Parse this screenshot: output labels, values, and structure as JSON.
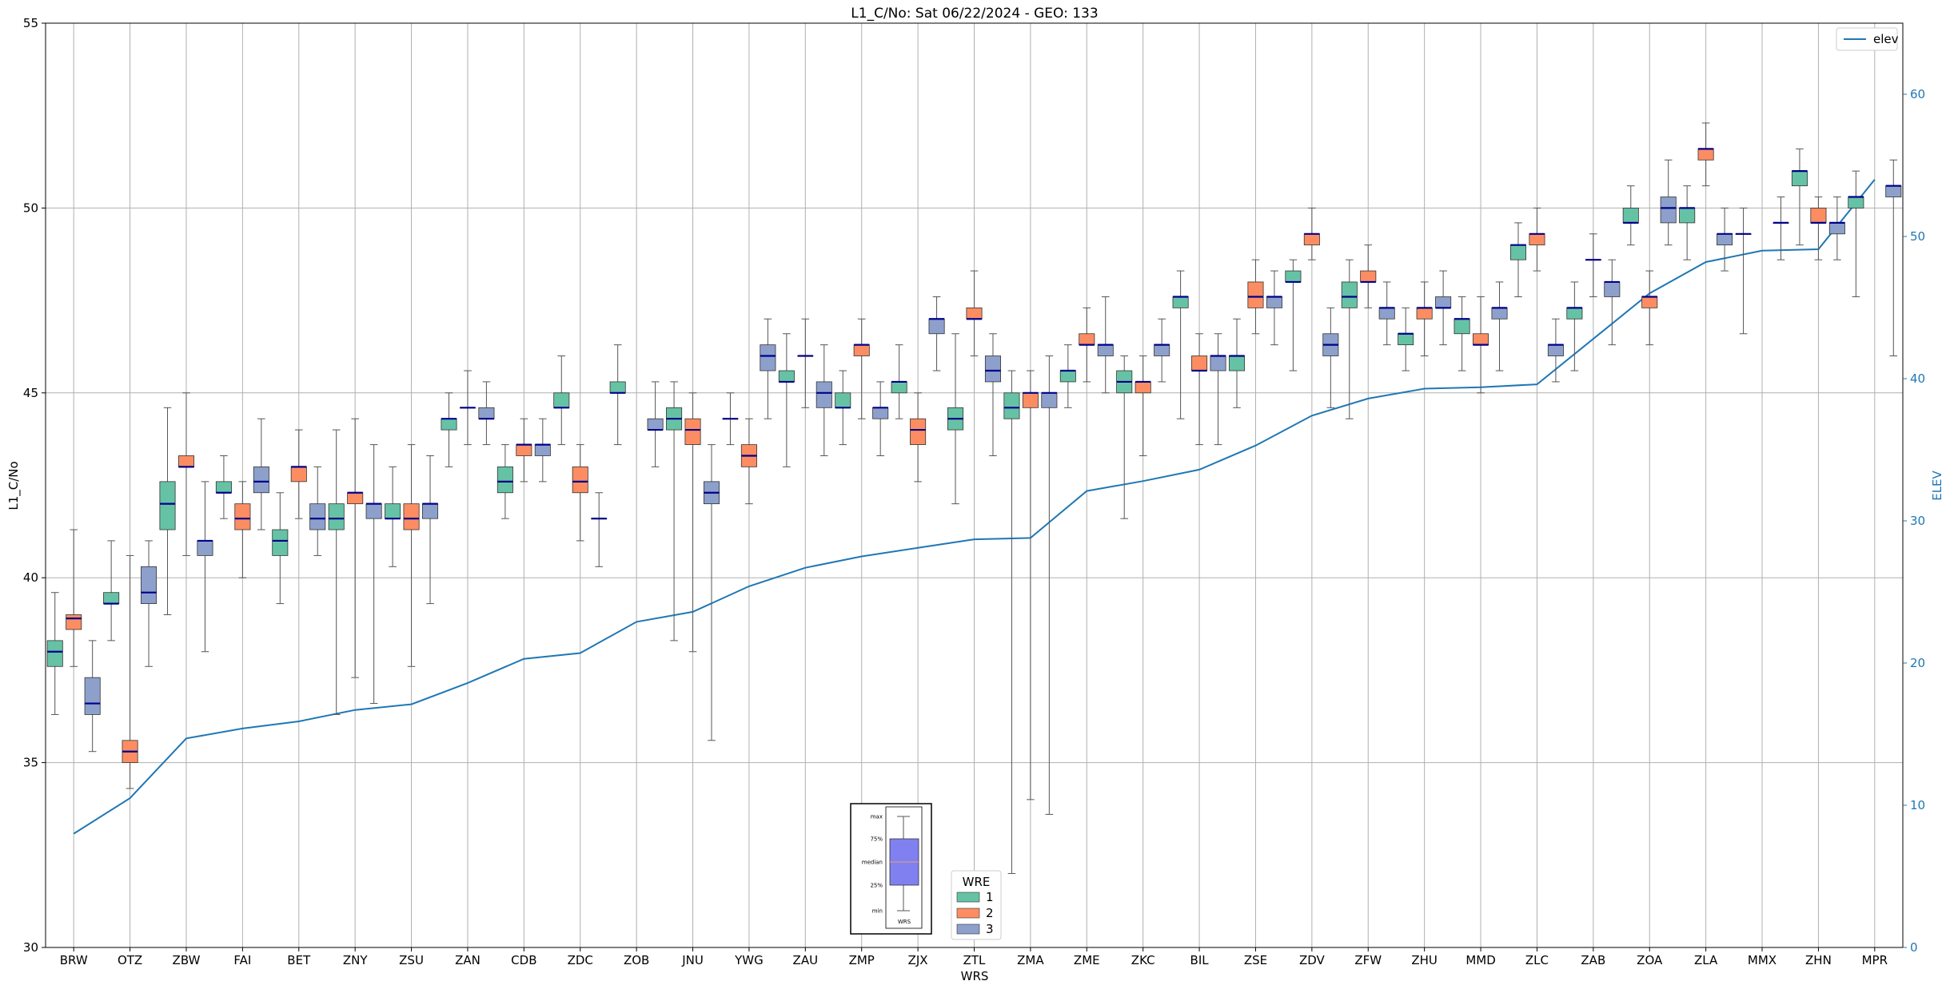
{
  "chart_data": {
    "type": "box",
    "title": "L1_C/No: Sat 06/22/2024 - GEO: 133",
    "xlabel": "WRS",
    "ylabel": "L1_C/No",
    "y2label": "ELEV",
    "ylim": [
      30,
      55
    ],
    "y2lim": [
      0,
      65
    ],
    "yticks": [
      30,
      35,
      40,
      45,
      50,
      55
    ],
    "y2ticks": [
      0,
      10,
      20,
      30,
      40,
      50,
      60
    ],
    "grid": true,
    "categories": [
      "BRW",
      "OTZ",
      "ZBW",
      "FAI",
      "BET",
      "ZNY",
      "ZSU",
      "ZAN",
      "CDB",
      "ZDC",
      "ZOB",
      "JNU",
      "YWG",
      "ZAU",
      "ZMP",
      "ZJX",
      "ZTL",
      "ZMA",
      "ZME",
      "ZKC",
      "BIL",
      "ZSE",
      "ZDV",
      "ZFW",
      "ZHU",
      "MMD",
      "ZLC",
      "ZAB",
      "ZOA",
      "ZLA",
      "MMX",
      "ZHN",
      "MPR"
    ],
    "wre_colors": {
      "1": "#66c2a5",
      "2": "#fc8d62",
      "3": "#8da0cb"
    },
    "median_color": "#00008b",
    "elev_color": "#1f77b4",
    "legend_elev": {
      "label": "elev",
      "position": "upper right"
    },
    "legend_wre": {
      "title": "WRE",
      "labels": [
        "1",
        "2",
        "3"
      ],
      "position": "lower center"
    },
    "inset_key": {
      "labels": [
        "max",
        "75%",
        "median",
        "25%",
        "min"
      ],
      "xlabel": "WRS"
    },
    "elev": [
      8,
      10.5,
      14.7,
      15.4,
      15.9,
      16.7,
      17.1,
      18.6,
      20.3,
      20.7,
      22.9,
      23.6,
      25.4,
      26.7,
      27.5,
      28.1,
      28.7,
      28.8,
      32.1,
      32.8,
      33.6,
      35.3,
      37.4,
      38.6,
      39.3,
      39.4,
      39.6,
      42.8,
      46,
      48.2,
      49,
      49.1,
      54
    ],
    "boxes": [
      {
        "wrs": "BRW",
        "wre": "1",
        "min": 36.3,
        "q1": 37.6,
        "med": 38.0,
        "q3": 38.3,
        "max": 39.6
      },
      {
        "wrs": "BRW",
        "wre": "2",
        "min": 37.6,
        "q1": 38.6,
        "med": 38.9,
        "q3": 39.0,
        "max": 41.3
      },
      {
        "wrs": "BRW",
        "wre": "3",
        "min": 35.3,
        "q1": 36.3,
        "med": 36.6,
        "q3": 37.3,
        "max": 38.3
      },
      {
        "wrs": "OTZ",
        "wre": "1",
        "min": 38.3,
        "q1": 39.3,
        "med": 39.3,
        "q3": 39.6,
        "max": 41.0
      },
      {
        "wrs": "OTZ",
        "wre": "2",
        "min": 34.3,
        "q1": 35.0,
        "med": 35.3,
        "q3": 35.6,
        "max": 40.6
      },
      {
        "wrs": "OTZ",
        "wre": "3",
        "min": 37.6,
        "q1": 39.3,
        "med": 39.6,
        "q3": 40.3,
        "max": 41.0
      },
      {
        "wrs": "ZBW",
        "wre": "1",
        "min": 39.0,
        "q1": 41.3,
        "med": 42.0,
        "q3": 42.6,
        "max": 44.6
      },
      {
        "wrs": "ZBW",
        "wre": "2",
        "min": 40.6,
        "q1": 43.0,
        "med": 43.0,
        "q3": 43.3,
        "max": 45.0
      },
      {
        "wrs": "ZBW",
        "wre": "3",
        "min": 38.0,
        "q1": 40.6,
        "med": 41.0,
        "q3": 41.0,
        "max": 42.6
      },
      {
        "wrs": "FAI",
        "wre": "1",
        "min": 41.6,
        "q1": 42.3,
        "med": 42.3,
        "q3": 42.6,
        "max": 43.3
      },
      {
        "wrs": "FAI",
        "wre": "2",
        "min": 40.0,
        "q1": 41.3,
        "med": 41.6,
        "q3": 42.0,
        "max": 42.6
      },
      {
        "wrs": "FAI",
        "wre": "3",
        "min": 41.3,
        "q1": 42.3,
        "med": 42.6,
        "q3": 43.0,
        "max": 44.3
      },
      {
        "wrs": "BET",
        "wre": "1",
        "min": 39.3,
        "q1": 40.6,
        "med": 41.0,
        "q3": 41.3,
        "max": 42.3
      },
      {
        "wrs": "BET",
        "wre": "2",
        "min": 41.6,
        "q1": 42.6,
        "med": 43.0,
        "q3": 43.0,
        "max": 44.0
      },
      {
        "wrs": "BET",
        "wre": "3",
        "min": 40.6,
        "q1": 41.3,
        "med": 41.6,
        "q3": 42.0,
        "max": 43.0
      },
      {
        "wrs": "ZNY",
        "wre": "1",
        "min": 36.3,
        "q1": 41.3,
        "med": 41.6,
        "q3": 42.0,
        "max": 44.0
      },
      {
        "wrs": "ZNY",
        "wre": "2",
        "min": 37.3,
        "q1": 42.0,
        "med": 42.3,
        "q3": 42.3,
        "max": 44.3
      },
      {
        "wrs": "ZNY",
        "wre": "3",
        "min": 36.6,
        "q1": 41.6,
        "med": 42.0,
        "q3": 42.0,
        "max": 43.6
      },
      {
        "wrs": "ZSU",
        "wre": "1",
        "min": 40.3,
        "q1": 41.6,
        "med": 41.6,
        "q3": 42.0,
        "max": 43.0
      },
      {
        "wrs": "ZSU",
        "wre": "2",
        "min": 37.6,
        "q1": 41.3,
        "med": 41.6,
        "q3": 42.0,
        "max": 43.6
      },
      {
        "wrs": "ZSU",
        "wre": "3",
        "min": 39.3,
        "q1": 41.6,
        "med": 42.0,
        "q3": 42.0,
        "max": 43.3
      },
      {
        "wrs": "ZAN",
        "wre": "1",
        "min": 43.0,
        "q1": 44.0,
        "med": 44.3,
        "q3": 44.3,
        "max": 45.0
      },
      {
        "wrs": "ZAN",
        "wre": "2",
        "min": 43.6,
        "q1": 44.6,
        "med": 44.6,
        "q3": 44.6,
        "max": 45.6
      },
      {
        "wrs": "ZAN",
        "wre": "3",
        "min": 43.6,
        "q1": 44.3,
        "med": 44.3,
        "q3": 44.6,
        "max": 45.3
      },
      {
        "wrs": "CDB",
        "wre": "1",
        "min": 41.6,
        "q1": 42.3,
        "med": 42.6,
        "q3": 43.0,
        "max": 43.6
      },
      {
        "wrs": "CDB",
        "wre": "2",
        "min": 42.6,
        "q1": 43.3,
        "med": 43.6,
        "q3": 43.6,
        "max": 44.3
      },
      {
        "wrs": "CDB",
        "wre": "3",
        "min": 42.6,
        "q1": 43.3,
        "med": 43.6,
        "q3": 43.6,
        "max": 44.3
      },
      {
        "wrs": "ZDC",
        "wre": "1",
        "min": 43.6,
        "q1": 44.6,
        "med": 44.6,
        "q3": 45.0,
        "max": 46.0
      },
      {
        "wrs": "ZDC",
        "wre": "2",
        "min": 41.0,
        "q1": 42.3,
        "med": 42.6,
        "q3": 43.0,
        "max": 43.6
      },
      {
        "wrs": "ZDC",
        "wre": "3",
        "min": 40.3,
        "q1": 41.6,
        "med": 41.6,
        "q3": 41.6,
        "max": 42.3
      },
      {
        "wrs": "ZOB",
        "wre": "1",
        "min": 43.6,
        "q1": 45.0,
        "med": 45.0,
        "q3": 45.3,
        "max": 46.3
      },
      {
        "wrs": "ZOB",
        "wre": "3",
        "min": 43.0,
        "q1": 44.0,
        "med": 44.0,
        "q3": 44.3,
        "max": 45.3
      },
      {
        "wrs": "JNU",
        "wre": "1",
        "min": 38.3,
        "q1": 44.0,
        "med": 44.3,
        "q3": 44.6,
        "max": 45.3
      },
      {
        "wrs": "JNU",
        "wre": "2",
        "min": 38.0,
        "q1": 43.6,
        "med": 44.0,
        "q3": 44.3,
        "max": 45.0
      },
      {
        "wrs": "JNU",
        "wre": "3",
        "min": 35.6,
        "q1": 42.0,
        "med": 42.3,
        "q3": 42.6,
        "max": 43.6
      },
      {
        "wrs": "YWG",
        "wre": "1",
        "min": 43.6,
        "q1": 44.3,
        "med": 44.3,
        "q3": 44.3,
        "max": 45.0
      },
      {
        "wrs": "YWG",
        "wre": "2",
        "min": 42.0,
        "q1": 43.0,
        "med": 43.3,
        "q3": 43.6,
        "max": 44.3
      },
      {
        "wrs": "YWG",
        "wre": "3",
        "min": 44.3,
        "q1": 45.6,
        "med": 46.0,
        "q3": 46.3,
        "max": 47.0
      },
      {
        "wrs": "ZAU",
        "wre": "1",
        "min": 43.0,
        "q1": 45.3,
        "med": 45.3,
        "q3": 45.6,
        "max": 46.6
      },
      {
        "wrs": "ZAU",
        "wre": "2",
        "min": 44.6,
        "q1": 46.0,
        "med": 46.0,
        "q3": 46.0,
        "max": 47.0
      },
      {
        "wrs": "ZAU",
        "wre": "3",
        "min": 43.3,
        "q1": 44.6,
        "med": 45.0,
        "q3": 45.3,
        "max": 46.3
      },
      {
        "wrs": "ZMP",
        "wre": "1",
        "min": 43.6,
        "q1": 44.6,
        "med": 44.6,
        "q3": 45.0,
        "max": 45.6
      },
      {
        "wrs": "ZMP",
        "wre": "2",
        "min": 44.3,
        "q1": 46.0,
        "med": 46.3,
        "q3": 46.3,
        "max": 47.0
      },
      {
        "wrs": "ZMP",
        "wre": "3",
        "min": 43.3,
        "q1": 44.3,
        "med": 44.6,
        "q3": 44.6,
        "max": 45.3
      },
      {
        "wrs": "ZJX",
        "wre": "1",
        "min": 44.3,
        "q1": 45.0,
        "med": 45.3,
        "q3": 45.3,
        "max": 46.3
      },
      {
        "wrs": "ZJX",
        "wre": "2",
        "min": 42.6,
        "q1": 43.6,
        "med": 44.0,
        "q3": 44.3,
        "max": 45.0
      },
      {
        "wrs": "ZJX",
        "wre": "3",
        "min": 45.6,
        "q1": 46.6,
        "med": 47.0,
        "q3": 47.0,
        "max": 47.6
      },
      {
        "wrs": "ZTL",
        "wre": "1",
        "min": 42.0,
        "q1": 44.0,
        "med": 44.3,
        "q3": 44.6,
        "max": 46.6
      },
      {
        "wrs": "ZTL",
        "wre": "2",
        "min": 46.0,
        "q1": 47.0,
        "med": 47.0,
        "q3": 47.3,
        "max": 48.3
      },
      {
        "wrs": "ZTL",
        "wre": "3",
        "min": 43.3,
        "q1": 45.3,
        "med": 45.6,
        "q3": 46.0,
        "max": 46.6
      },
      {
        "wrs": "ZMA",
        "wre": "1",
        "min": 32.0,
        "q1": 44.3,
        "med": 44.6,
        "q3": 45.0,
        "max": 45.6
      },
      {
        "wrs": "ZMA",
        "wre": "2",
        "min": 34.0,
        "q1": 44.6,
        "med": 45.0,
        "q3": 45.0,
        "max": 45.6
      },
      {
        "wrs": "ZMA",
        "wre": "3",
        "min": 33.6,
        "q1": 44.6,
        "med": 45.0,
        "q3": 45.0,
        "max": 46.0
      },
      {
        "wrs": "ZME",
        "wre": "1",
        "min": 44.6,
        "q1": 45.3,
        "med": 45.6,
        "q3": 45.6,
        "max": 46.3
      },
      {
        "wrs": "ZME",
        "wre": "2",
        "min": 45.3,
        "q1": 46.3,
        "med": 46.3,
        "q3": 46.6,
        "max": 47.3
      },
      {
        "wrs": "ZME",
        "wre": "3",
        "min": 45.0,
        "q1": 46.0,
        "med": 46.3,
        "q3": 46.3,
        "max": 47.6
      },
      {
        "wrs": "ZKC",
        "wre": "1",
        "min": 41.6,
        "q1": 45.0,
        "med": 45.3,
        "q3": 45.6,
        "max": 46.0
      },
      {
        "wrs": "ZKC",
        "wre": "2",
        "min": 43.3,
        "q1": 45.0,
        "med": 45.3,
        "q3": 45.3,
        "max": 46.0
      },
      {
        "wrs": "ZKC",
        "wre": "3",
        "min": 45.3,
        "q1": 46.0,
        "med": 46.3,
        "q3": 46.3,
        "max": 47.0
      },
      {
        "wrs": "BIL",
        "wre": "1",
        "min": 44.3,
        "q1": 47.3,
        "med": 47.6,
        "q3": 47.6,
        "max": 48.3
      },
      {
        "wrs": "BIL",
        "wre": "2",
        "min": 43.6,
        "q1": 45.6,
        "med": 45.6,
        "q3": 46.0,
        "max": 46.6
      },
      {
        "wrs": "BIL",
        "wre": "3",
        "min": 43.6,
        "q1": 45.6,
        "med": 46.0,
        "q3": 46.0,
        "max": 46.6
      },
      {
        "wrs": "ZSE",
        "wre": "1",
        "min": 44.6,
        "q1": 45.6,
        "med": 46.0,
        "q3": 46.0,
        "max": 47.0
      },
      {
        "wrs": "ZSE",
        "wre": "2",
        "min": 46.6,
        "q1": 47.3,
        "med": 47.6,
        "q3": 48.0,
        "max": 48.6
      },
      {
        "wrs": "ZSE",
        "wre": "3",
        "min": 46.3,
        "q1": 47.3,
        "med": 47.6,
        "q3": 47.6,
        "max": 48.3
      },
      {
        "wrs": "ZDV",
        "wre": "1",
        "min": 45.6,
        "q1": 48.0,
        "med": 48.0,
        "q3": 48.3,
        "max": 48.6
      },
      {
        "wrs": "ZDV",
        "wre": "2",
        "min": 48.6,
        "q1": 49.0,
        "med": 49.3,
        "q3": 49.3,
        "max": 50.0
      },
      {
        "wrs": "ZDV",
        "wre": "3",
        "min": 44.6,
        "q1": 46.0,
        "med": 46.3,
        "q3": 46.6,
        "max": 47.3
      },
      {
        "wrs": "ZFW",
        "wre": "1",
        "min": 44.3,
        "q1": 47.3,
        "med": 47.6,
        "q3": 48.0,
        "max": 48.6
      },
      {
        "wrs": "ZFW",
        "wre": "2",
        "min": 47.3,
        "q1": 48.0,
        "med": 48.0,
        "q3": 48.3,
        "max": 49.0
      },
      {
        "wrs": "ZFW",
        "wre": "3",
        "min": 46.3,
        "q1": 47.0,
        "med": 47.3,
        "q3": 47.3,
        "max": 48.0
      },
      {
        "wrs": "ZHU",
        "wre": "1",
        "min": 45.6,
        "q1": 46.3,
        "med": 46.6,
        "q3": 46.6,
        "max": 47.3
      },
      {
        "wrs": "ZHU",
        "wre": "2",
        "min": 46.0,
        "q1": 47.0,
        "med": 47.3,
        "q3": 47.3,
        "max": 48.0
      },
      {
        "wrs": "ZHU",
        "wre": "3",
        "min": 46.3,
        "q1": 47.3,
        "med": 47.3,
        "q3": 47.6,
        "max": 48.3
      },
      {
        "wrs": "MMD",
        "wre": "1",
        "min": 45.6,
        "q1": 46.6,
        "med": 47.0,
        "q3": 47.0,
        "max": 47.6
      },
      {
        "wrs": "MMD",
        "wre": "2",
        "min": 45.0,
        "q1": 46.3,
        "med": 46.3,
        "q3": 46.6,
        "max": 47.6
      },
      {
        "wrs": "MMD",
        "wre": "3",
        "min": 45.6,
        "q1": 47.0,
        "med": 47.3,
        "q3": 47.3,
        "max": 48.0
      },
      {
        "wrs": "ZLC",
        "wre": "1",
        "min": 47.6,
        "q1": 48.6,
        "med": 49.0,
        "q3": 49.0,
        "max": 49.6
      },
      {
        "wrs": "ZLC",
        "wre": "2",
        "min": 48.3,
        "q1": 49.0,
        "med": 49.3,
        "q3": 49.3,
        "max": 50.0
      },
      {
        "wrs": "ZLC",
        "wre": "3",
        "min": 45.3,
        "q1": 46.0,
        "med": 46.3,
        "q3": 46.3,
        "max": 47.0
      },
      {
        "wrs": "ZAB",
        "wre": "1",
        "min": 45.6,
        "q1": 47.0,
        "med": 47.3,
        "q3": 47.3,
        "max": 48.0
      },
      {
        "wrs": "ZAB",
        "wre": "2",
        "min": 47.6,
        "q1": 48.6,
        "med": 48.6,
        "q3": 48.6,
        "max": 49.3
      },
      {
        "wrs": "ZAB",
        "wre": "3",
        "min": 46.3,
        "q1": 47.6,
        "med": 48.0,
        "q3": 48.0,
        "max": 48.6
      },
      {
        "wrs": "ZOA",
        "wre": "1",
        "min": 49.0,
        "q1": 49.6,
        "med": 49.6,
        "q3": 50.0,
        "max": 50.6
      },
      {
        "wrs": "ZOA",
        "wre": "2",
        "min": 46.3,
        "q1": 47.3,
        "med": 47.6,
        "q3": 47.6,
        "max": 48.3
      },
      {
        "wrs": "ZOA",
        "wre": "3",
        "min": 49.0,
        "q1": 49.6,
        "med": 50.0,
        "q3": 50.3,
        "max": 51.3
      },
      {
        "wrs": "ZLA",
        "wre": "1",
        "min": 48.6,
        "q1": 49.6,
        "med": 50.0,
        "q3": 50.0,
        "max": 50.6
      },
      {
        "wrs": "ZLA",
        "wre": "2",
        "min": 50.6,
        "q1": 51.3,
        "med": 51.6,
        "q3": 51.6,
        "max": 52.3
      },
      {
        "wrs": "ZLA",
        "wre": "3",
        "min": 48.3,
        "q1": 49.0,
        "med": 49.3,
        "q3": 49.3,
        "max": 50.0
      },
      {
        "wrs": "MMX",
        "wre": "1",
        "min": 46.6,
        "q1": 49.3,
        "med": 49.3,
        "q3": 49.3,
        "max": 50.0
      },
      {
        "wrs": "MMX",
        "wre": "3",
        "min": 48.6,
        "q1": 49.6,
        "med": 49.6,
        "q3": 49.6,
        "max": 50.3
      },
      {
        "wrs": "ZHN",
        "wre": "1",
        "min": 49.0,
        "q1": 50.6,
        "med": 51.0,
        "q3": 51.0,
        "max": 51.6
      },
      {
        "wrs": "ZHN",
        "wre": "2",
        "min": 48.6,
        "q1": 49.6,
        "med": 49.6,
        "q3": 50.0,
        "max": 50.3
      },
      {
        "wrs": "ZHN",
        "wre": "3",
        "min": 48.6,
        "q1": 49.3,
        "med": 49.6,
        "q3": 49.6,
        "max": 50.3
      },
      {
        "wrs": "MPR",
        "wre": "1",
        "min": 47.6,
        "q1": 50.0,
        "med": 50.3,
        "q3": 50.3,
        "max": 51.0
      },
      {
        "wrs": "MPR",
        "wre": "3",
        "min": 46.0,
        "q1": 50.3,
        "med": 50.6,
        "q3": 50.6,
        "max": 51.3
      }
    ]
  }
}
